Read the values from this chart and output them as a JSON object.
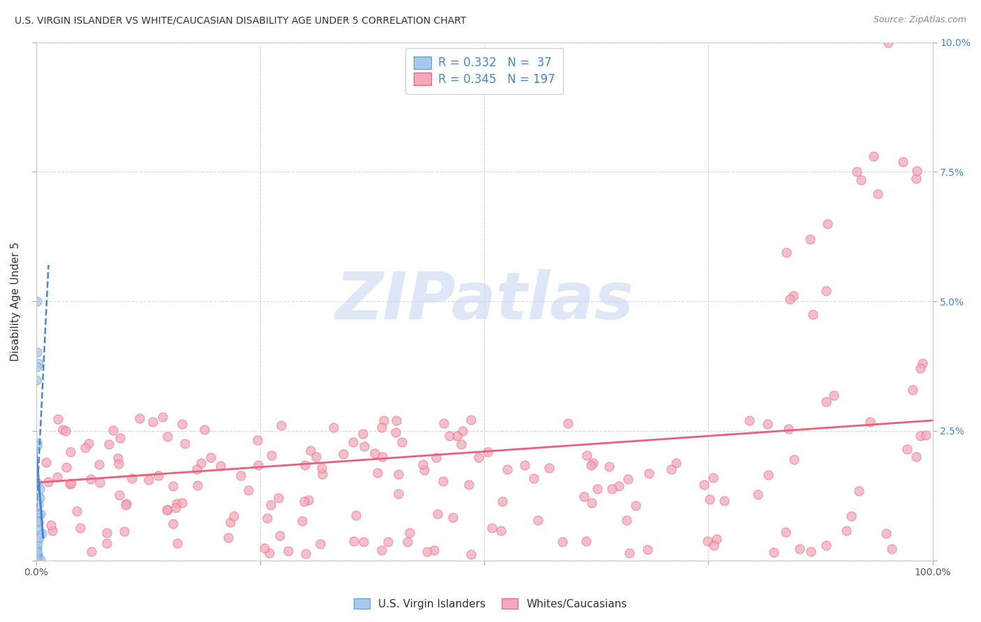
{
  "title": "U.S. VIRGIN ISLANDER VS WHITE/CAUCASIAN DISABILITY AGE UNDER 5 CORRELATION CHART",
  "source": "Source: ZipAtlas.com",
  "ylabel": "Disability Age Under 5",
  "xlim": [
    0,
    1.0
  ],
  "ylim": [
    0,
    0.1
  ],
  "blue_R": 0.332,
  "blue_N": 37,
  "pink_R": 0.345,
  "pink_N": 197,
  "blue_color": "#a8c8f0",
  "pink_color": "#f4a8b8",
  "blue_edge_color": "#5a9fd4",
  "pink_edge_color": "#e06080",
  "blue_trend_color": "#4a86c8",
  "pink_trend_color": "#e8607a",
  "watermark_text": "ZIPatlas",
  "watermark_color": "#c8d8f0",
  "background_color": "#ffffff",
  "grid_color": "#d8d8d8",
  "title_color": "#333333",
  "source_color": "#888888",
  "tick_color": "#4488cc",
  "ylabel_color": "#333333",
  "legend_label_color": "#4488cc",
  "bottom_legend_color": "#333333"
}
